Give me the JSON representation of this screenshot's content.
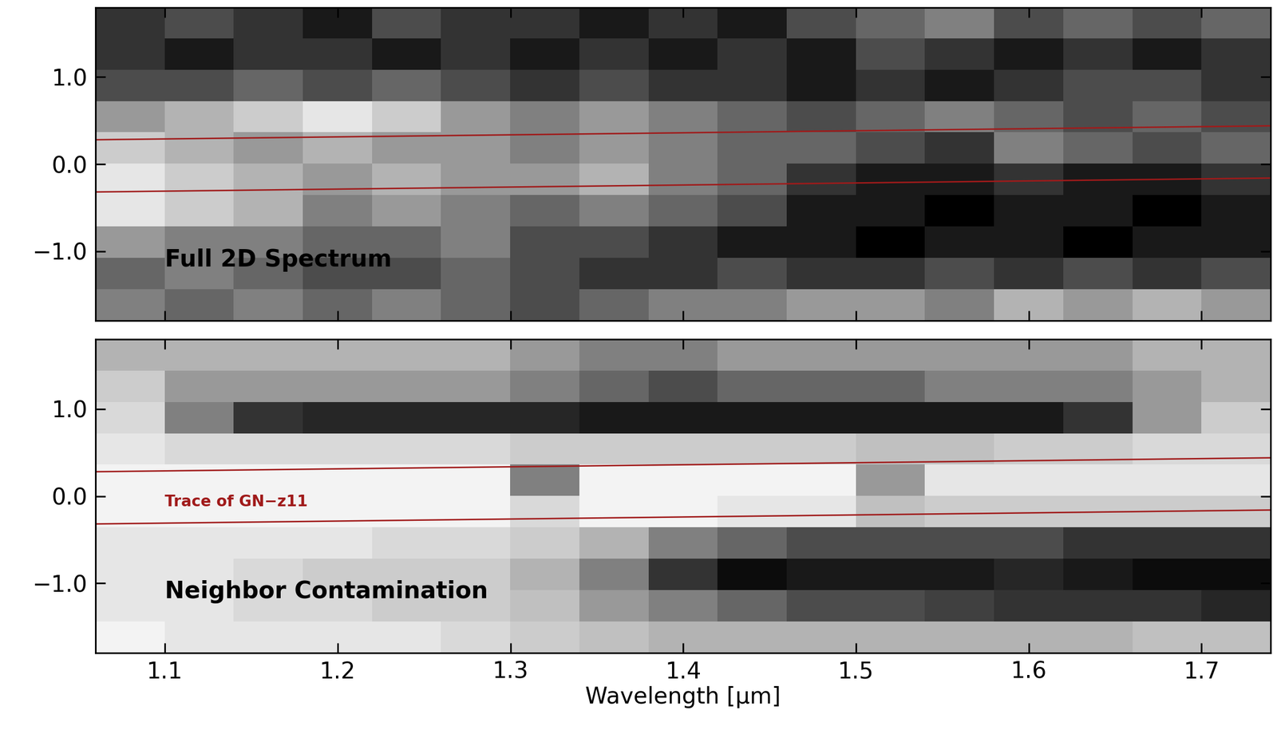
{
  "chart_data": [
    {
      "type": "heatmap",
      "label": "Full 2D Spectrum",
      "tick_labels": "y",
      "xlim": [
        1.06,
        1.74
      ],
      "ylim": [
        -1.8,
        1.8
      ],
      "zlim": [
        0,
        1
      ],
      "xticks": [
        1.1,
        1.2,
        1.3,
        1.4,
        1.5,
        1.6,
        1.7
      ],
      "yticks": [
        {
          "value": -1.0,
          "label": "−1.0"
        },
        0.0,
        1.0
      ],
      "cells": [
        [
          0.2,
          0.3,
          0.2,
          0.1,
          0.3,
          0.2,
          0.2,
          0.1,
          0.2,
          0.1,
          0.3,
          0.4,
          0.5,
          0.3,
          0.4,
          0.3,
          0.4
        ],
        [
          0.2,
          0.1,
          0.2,
          0.2,
          0.1,
          0.2,
          0.1,
          0.2,
          0.1,
          0.2,
          0.1,
          0.3,
          0.2,
          0.1,
          0.2,
          0.1,
          0.2
        ],
        [
          0.3,
          0.3,
          0.4,
          0.3,
          0.4,
          0.3,
          0.2,
          0.3,
          0.2,
          0.2,
          0.1,
          0.2,
          0.1,
          0.2,
          0.3,
          0.3,
          0.2
        ],
        [
          0.6,
          0.7,
          0.8,
          0.9,
          0.8,
          0.6,
          0.5,
          0.6,
          0.5,
          0.4,
          0.3,
          0.4,
          0.5,
          0.4,
          0.3,
          0.4,
          0.3
        ],
        [
          0.8,
          0.7,
          0.6,
          0.7,
          0.6,
          0.6,
          0.5,
          0.6,
          0.5,
          0.4,
          0.4,
          0.3,
          0.2,
          0.5,
          0.4,
          0.3,
          0.4
        ],
        [
          0.9,
          0.8,
          0.7,
          0.6,
          0.7,
          0.6,
          0.6,
          0.7,
          0.5,
          0.4,
          0.2,
          0.1,
          0.1,
          0.2,
          0.1,
          0.1,
          0.2
        ],
        [
          0.9,
          0.8,
          0.7,
          0.5,
          0.6,
          0.5,
          0.4,
          0.5,
          0.4,
          0.3,
          0.1,
          0.1,
          0.0,
          0.1,
          0.1,
          0.0,
          0.1
        ],
        [
          0.6,
          0.5,
          0.5,
          0.4,
          0.4,
          0.5,
          0.3,
          0.3,
          0.2,
          0.1,
          0.1,
          0.0,
          0.1,
          0.1,
          0.0,
          0.1,
          0.1
        ],
        [
          0.4,
          0.5,
          0.4,
          0.3,
          0.3,
          0.4,
          0.3,
          0.2,
          0.2,
          0.3,
          0.2,
          0.2,
          0.3,
          0.2,
          0.3,
          0.2,
          0.3
        ],
        [
          0.5,
          0.4,
          0.5,
          0.4,
          0.5,
          0.4,
          0.3,
          0.4,
          0.5,
          0.5,
          0.6,
          0.6,
          0.5,
          0.7,
          0.6,
          0.7,
          0.6
        ]
      ],
      "trace": {
        "x": [
          1.06,
          1.74
        ],
        "upper": [
          0.28,
          0.44
        ],
        "lower": [
          -0.32,
          -0.16
        ],
        "color": "#a01a1a"
      }
    },
    {
      "type": "heatmap",
      "label": "Neighbor Contamination",
      "xlabel": "Wavelength [μm]",
      "xlim": [
        1.06,
        1.74
      ],
      "ylim": [
        -1.8,
        1.8
      ],
      "zlim": [
        0,
        1
      ],
      "xticks": [
        1.1,
        1.2,
        1.3,
        1.4,
        1.5,
        1.6,
        1.7
      ],
      "yticks": [
        {
          "value": -1.0,
          "label": "−1.0"
        },
        0.0,
        1.0
      ],
      "cells": [
        [
          0.7,
          0.7,
          0.7,
          0.7,
          0.7,
          0.7,
          0.6,
          0.5,
          0.5,
          0.6,
          0.6,
          0.6,
          0.6,
          0.6,
          0.6,
          0.7,
          0.7
        ],
        [
          0.8,
          0.6,
          0.6,
          0.6,
          0.6,
          0.6,
          0.5,
          0.4,
          0.3,
          0.4,
          0.4,
          0.4,
          0.5,
          0.5,
          0.5,
          0.6,
          0.7
        ],
        [
          0.85,
          0.5,
          0.2,
          0.15,
          0.15,
          0.15,
          0.15,
          0.1,
          0.1,
          0.1,
          0.1,
          0.1,
          0.1,
          0.1,
          0.2,
          0.6,
          0.8
        ],
        [
          0.9,
          0.85,
          0.85,
          0.85,
          0.85,
          0.85,
          0.8,
          0.8,
          0.8,
          0.8,
          0.8,
          0.75,
          0.75,
          0.8,
          0.8,
          0.85,
          0.85
        ],
        [
          0.95,
          0.95,
          0.95,
          0.95,
          0.95,
          0.95,
          0.5,
          0.95,
          0.95,
          0.95,
          0.95,
          0.6,
          0.9,
          0.9,
          0.9,
          0.9,
          0.9
        ],
        [
          0.95,
          0.95,
          0.95,
          0.95,
          0.95,
          0.95,
          0.85,
          0.95,
          0.95,
          0.9,
          0.9,
          0.75,
          0.8,
          0.8,
          0.8,
          0.8,
          0.8
        ],
        [
          0.9,
          0.9,
          0.9,
          0.9,
          0.85,
          0.85,
          0.8,
          0.7,
          0.5,
          0.4,
          0.3,
          0.3,
          0.3,
          0.3,
          0.2,
          0.2,
          0.2
        ],
        [
          0.9,
          0.9,
          0.85,
          0.8,
          0.8,
          0.8,
          0.7,
          0.5,
          0.2,
          0.05,
          0.1,
          0.1,
          0.1,
          0.15,
          0.1,
          0.05,
          0.05
        ],
        [
          0.9,
          0.9,
          0.85,
          0.85,
          0.8,
          0.8,
          0.75,
          0.6,
          0.5,
          0.4,
          0.3,
          0.3,
          0.25,
          0.2,
          0.2,
          0.2,
          0.15
        ],
        [
          0.95,
          0.9,
          0.9,
          0.9,
          0.9,
          0.85,
          0.8,
          0.75,
          0.7,
          0.7,
          0.7,
          0.7,
          0.7,
          0.7,
          0.7,
          0.75,
          0.75
        ]
      ],
      "trace": {
        "name": "Trace of GN−z11",
        "x": [
          1.06,
          1.74
        ],
        "upper": [
          0.28,
          0.44
        ],
        "lower": [
          -0.32,
          -0.16
        ],
        "color": "#a01a1a"
      }
    }
  ]
}
